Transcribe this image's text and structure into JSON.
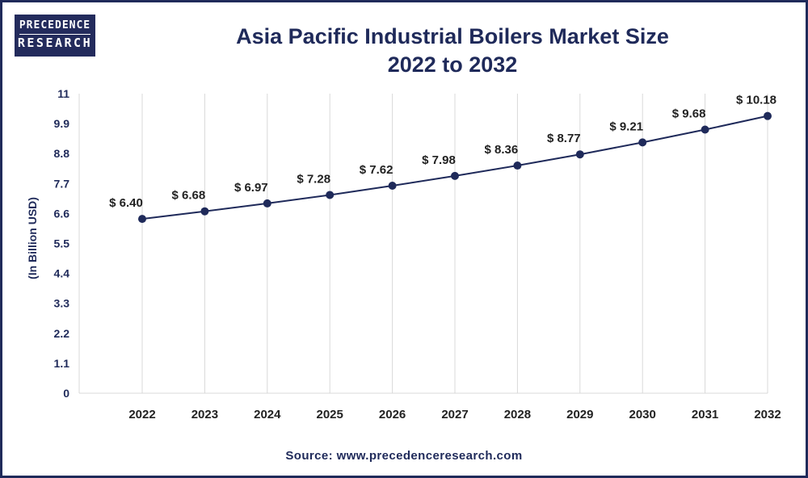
{
  "brand": {
    "line1": "PRECEDENCE",
    "line2": "RESEARCH"
  },
  "colors": {
    "primary": "#1f2a5a",
    "grid": "#d9d9d9"
  },
  "chart_data": {
    "type": "line",
    "title_line1": "Asia Pacific Industrial Boilers Market Size",
    "title_line2": "2022 to 2032",
    "ylabel": "(In Billion USD)",
    "xlabel": "",
    "x": [
      "2022",
      "2023",
      "2024",
      "2025",
      "2026",
      "2027",
      "2028",
      "2029",
      "2030",
      "2031",
      "2032"
    ],
    "values": [
      6.4,
      6.68,
      6.97,
      7.28,
      7.62,
      7.98,
      8.36,
      8.77,
      9.21,
      9.68,
      10.18
    ],
    "data_labels": [
      "$ 6.40",
      "$ 6.68",
      "$ 6.97",
      "$ 7.28",
      "$ 7.62",
      "$ 7.98",
      "$ 8.36",
      "$ 8.77",
      "$ 9.21",
      "$ 9.68",
      "$ 10.18"
    ],
    "yticks": [
      "0",
      "1.1",
      "2.2",
      "3.3",
      "4.4",
      "5.5",
      "6.6",
      "7.7",
      "8.8",
      "9.9",
      "11"
    ],
    "ylim": [
      0,
      11
    ],
    "grid": "vertical",
    "legend": "none"
  },
  "source": "Source: www.precedenceresearch.com"
}
